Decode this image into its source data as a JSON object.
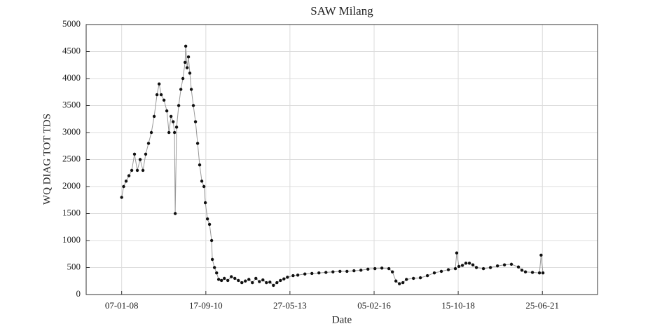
{
  "chart_data": {
    "type": "line",
    "title": "SAW Milang",
    "x_label": "Date",
    "y_label": "WQ DIAG TOT TDS",
    "x": [
      "2008-01-07",
      "2008-01-30",
      "2008-02-28",
      "2008-04-01",
      "2008-05-04",
      "2008-06-05",
      "2008-07-08",
      "2008-08-10",
      "2008-09-12",
      "2008-10-14",
      "2008-11-16",
      "2008-12-19",
      "2009-01-21",
      "2009-02-23",
      "2009-03-20",
      "2009-04-13",
      "2009-05-16",
      "2009-06-18",
      "2009-07-13",
      "2009-08-06",
      "2009-08-31",
      "2009-09-16",
      "2009-09-24",
      "2009-10-10",
      "2009-11-04",
      "2009-11-29",
      "2009-12-23",
      "2010-01-17",
      "2010-01-25",
      "2010-02-10",
      "2010-02-26",
      "2010-03-14",
      "2010-03-31",
      "2010-04-24",
      "2010-05-19",
      "2010-06-13",
      "2010-07-07",
      "2010-08-01",
      "2010-08-26",
      "2010-09-11",
      "2010-10-06",
      "2010-10-30",
      "2010-11-24",
      "2010-12-02",
      "2010-12-27",
      "2011-01-21",
      "2011-02-14",
      "2011-03-19",
      "2011-04-21",
      "2011-06-01",
      "2011-07-12",
      "2011-08-22",
      "2011-10-02",
      "2011-11-12",
      "2011-12-23",
      "2012-02-02",
      "2012-03-14",
      "2012-04-24",
      "2012-06-04",
      "2012-07-15",
      "2012-08-25",
      "2012-10-05",
      "2012-11-15",
      "2012-12-26",
      "2013-02-05",
      "2013-03-18",
      "2013-04-28",
      "2013-07-03",
      "2013-08-27",
      "2013-11-18",
      "2014-02-08",
      "2014-05-01",
      "2014-07-22",
      "2014-10-12",
      "2015-01-02",
      "2015-03-25",
      "2015-06-15",
      "2015-09-04",
      "2015-11-25",
      "2016-02-15",
      "2016-05-06",
      "2016-07-27",
      "2016-09-06",
      "2016-10-17",
      "2016-11-27",
      "2017-01-07",
      "2017-02-17",
      "2017-05-10",
      "2017-07-30",
      "2017-10-20",
      "2018-01-09",
      "2018-04-01",
      "2018-06-22",
      "2018-09-12",
      "2018-09-28",
      "2018-10-23",
      "2018-12-03",
      "2019-01-13",
      "2019-02-23",
      "2019-04-05",
      "2019-05-16",
      "2019-08-06",
      "2019-10-27",
      "2020-01-17",
      "2020-04-08",
      "2020-06-28",
      "2020-09-18",
      "2020-10-29",
      "2020-12-09",
      "2021-03-01",
      "2021-05-22",
      "2021-06-10",
      "2021-07-02"
    ],
    "values": [
      1800,
      2000,
      2100,
      2200,
      2300,
      2600,
      2300,
      2500,
      2300,
      2600,
      2800,
      3000,
      3300,
      3700,
      3900,
      3700,
      3600,
      3400,
      3000,
      3300,
      3200,
      3000,
      1500,
      3100,
      3500,
      3800,
      4000,
      4300,
      4600,
      4200,
      4400,
      4100,
      3800,
      3500,
      3200,
      2800,
      2400,
      2100,
      2000,
      1700,
      1400,
      1300,
      1000,
      650,
      500,
      400,
      280,
      260,
      300,
      260,
      330,
      300,
      260,
      220,
      250,
      280,
      220,
      300,
      240,
      270,
      220,
      230,
      170,
      220,
      260,
      290,
      320,
      350,
      360,
      380,
      390,
      400,
      410,
      420,
      430,
      430,
      440,
      450,
      470,
      480,
      490,
      480,
      420,
      250,
      200,
      220,
      280,
      300,
      310,
      350,
      400,
      430,
      460,
      480,
      770,
      520,
      540,
      580,
      580,
      550,
      500,
      480,
      500,
      530,
      550,
      560,
      510,
      450,
      420,
      410,
      400,
      730,
      400
    ],
    "color": "#111111",
    "line_color": "#999999",
    "xlim": [
      "2006-11-18",
      "2023-04-01"
    ],
    "xticks": [
      {
        "value": "2008-01-07",
        "label": "07-01-08"
      },
      {
        "value": "2010-09-17",
        "label": "17-09-10"
      },
      {
        "value": "2013-05-27",
        "label": "27-05-13"
      },
      {
        "value": "2016-02-05",
        "label": "05-02-16"
      },
      {
        "value": "2018-10-15",
        "label": "15-10-18"
      },
      {
        "value": "2021-06-25",
        "label": "25-06-21"
      }
    ],
    "ylim": [
      0,
      5000
    ],
    "yticks": [
      0,
      500,
      1000,
      1500,
      2000,
      2500,
      3000,
      3500,
      4000,
      4500,
      5000
    ],
    "grid": true
  }
}
